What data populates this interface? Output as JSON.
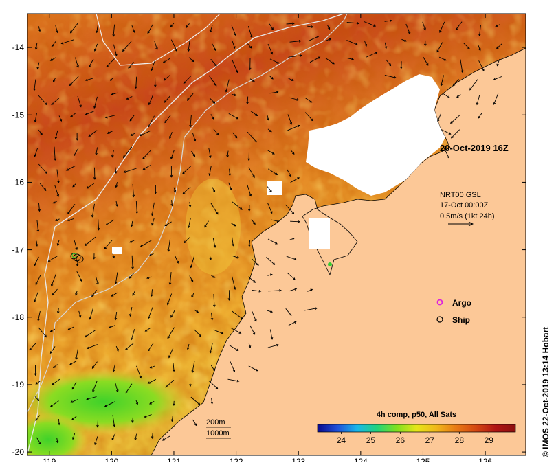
{
  "map": {
    "date_label": "20-Oct-2019 16Z",
    "current_info": {
      "line1": "NRT00 GSL",
      "line2": "17-Oct 00:00Z",
      "line3": "0.5m/s (1kt 24h)"
    },
    "legend": {
      "argo": "Argo",
      "ship": "Ship"
    },
    "contours": {
      "c200": "200m",
      "c1000": "1000m"
    },
    "colorbar": {
      "title": "4h comp, p50, All Sats",
      "ticks": [
        "24",
        "25",
        "26",
        "27",
        "28",
        "29"
      ],
      "tick_values": [
        24,
        25,
        26,
        27,
        28,
        29
      ],
      "range": [
        23.2,
        29.9
      ],
      "colors": [
        "#0a0a8c",
        "#1f4fd8",
        "#19b7ea",
        "#22d37c",
        "#7fe01f",
        "#e6e619",
        "#f0b81a",
        "#e87a14",
        "#d44812",
        "#b01414",
        "#8c1010"
      ]
    },
    "x_axis": {
      "labels": [
        "119",
        "120",
        "121",
        "122",
        "123",
        "124",
        "125",
        "126"
      ],
      "values": [
        119,
        120,
        121,
        122,
        123,
        124,
        125,
        126
      ],
      "range": [
        118.65,
        126.65
      ]
    },
    "y_axis": {
      "labels": [
        "-14",
        "-15",
        "-16",
        "-17",
        "-18",
        "-19",
        "-20"
      ],
      "values": [
        -14,
        -15,
        -16,
        -17,
        -18,
        -19,
        -20
      ],
      "range": [
        -13.5,
        -20.05
      ]
    },
    "copyright": "© IMOS 22-Oct-2019 13:14 Hobart",
    "colors": {
      "land": "#fcc897",
      "ocean_warm": "#c8461a",
      "ocean_mid": "#e58a26",
      "ocean_cool": "#f0c23a",
      "cold_green": "#4fd226",
      "cloud": "#ffffff",
      "contour": "#c8c8c8",
      "argo": "#dd22dd"
    }
  }
}
